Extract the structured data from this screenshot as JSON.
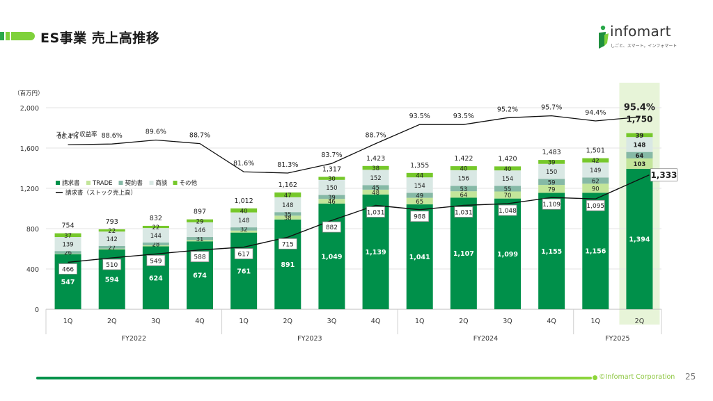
{
  "page": {
    "title": "ES事業 売上高推移",
    "logo_text": "infomart",
    "logo_sub": "しごと、スマート。インフォマート",
    "copyright": "©Infomart Corporation",
    "page_number": "25"
  },
  "colors": {
    "invoice": "#00904a",
    "trade": "#c3e59a",
    "contract": "#86b9a6",
    "negotiation": "#d9e8e4",
    "other": "#76c82b",
    "highlight": "#e7f4d8",
    "line": "#111111"
  },
  "chart_data": {
    "type": "bar",
    "stacked": true,
    "y_unit_label": "（百万円）",
    "ylim": [
      0,
      2000
    ],
    "yticks": [
      "0",
      "400",
      "800",
      "1,200",
      "1,600",
      "2,000"
    ],
    "ytick_values": [
      0,
      400,
      800,
      1200,
      1600,
      2000
    ],
    "grid": true,
    "legend_position": "upper-left",
    "categories": [
      "1Q",
      "2Q",
      "3Q",
      "4Q",
      "1Q",
      "2Q",
      "3Q",
      "4Q",
      "1Q",
      "2Q",
      "3Q",
      "4Q",
      "1Q",
      "2Q"
    ],
    "groups": [
      {
        "label": "FY2022",
        "count": 4
      },
      {
        "label": "FY2023",
        "count": 4
      },
      {
        "label": "FY2024",
        "count": 4
      },
      {
        "label": "FY2025",
        "count": 2
      }
    ],
    "series": [
      {
        "name": "請求書",
        "key": "invoice",
        "values": [
          547,
          594,
          624,
          674,
          761,
          891,
          1049,
          1139,
          1041,
          1107,
          1099,
          1155,
          1156,
          1394
        ]
      },
      {
        "name": "TRADE",
        "key": "trade",
        "values": [
          5,
          8,
          10,
          12,
          20,
          38,
          46,
          48,
          65,
          64,
          70,
          79,
          90,
          103
        ]
      },
      {
        "name": "契約書",
        "key": "contract",
        "values": [
          26,
          27,
          28,
          31,
          32,
          35,
          39,
          45,
          49,
          53,
          55,
          59,
          62,
          64
        ]
      },
      {
        "name": "商談",
        "key": "negotiation",
        "values": [
          139,
          142,
          144,
          146,
          148,
          148,
          150,
          152,
          154,
          156,
          154,
          150,
          149,
          148
        ]
      },
      {
        "name": "その他",
        "key": "other",
        "values": [
          37,
          22,
          22,
          29,
          40,
          47,
          30,
          38,
          44,
          40,
          40,
          39,
          42,
          39
        ]
      }
    ],
    "segment_labels": {
      "invoice": [
        "547",
        "594",
        "624",
        "674",
        "761",
        "891",
        "1,049",
        "1,139",
        "1,041",
        "1,107",
        "1,099",
        "1,155",
        "1,156",
        "1,394"
      ],
      "trade": [
        "",
        "",
        "",
        "",
        "",
        "38",
        "46",
        "48",
        "65",
        "64",
        "70",
        "79",
        "90",
        "103"
      ],
      "contract": [
        "26",
        "27",
        "28",
        "31",
        "32",
        "35",
        "39",
        "45",
        "49",
        "53",
        "55",
        "59",
        "62",
        "64"
      ],
      "negotiation": [
        "139",
        "142",
        "144",
        "146",
        "148",
        "148",
        "150",
        "152",
        "154",
        "156",
        "154",
        "150",
        "149",
        "148"
      ],
      "other": [
        "37",
        "22",
        "22",
        "29",
        "40",
        "47",
        "30",
        "38",
        "44",
        "40",
        "40",
        "39",
        "42",
        "39"
      ]
    },
    "totals": [
      "754",
      "793",
      "832",
      "897",
      "1,012",
      "1,162",
      "1,317",
      "1,423",
      "1,355",
      "1,422",
      "1,420",
      "1,483",
      "1,501",
      "1,750"
    ],
    "stock_sales_line": {
      "name": "請求書（ストック売上高）",
      "values": [
        466,
        510,
        549,
        588,
        617,
        715,
        882,
        1031,
        988,
        1031,
        1048,
        1109,
        1095,
        1333
      ],
      "labels": [
        "466",
        "510",
        "549",
        "588",
        "617",
        "715",
        "882",
        "1,031",
        "988",
        "1,031",
        "1,048",
        "1,109",
        "1,095",
        "1,333"
      ]
    },
    "stock_ratio": {
      "name": "ストック収益率",
      "values": [
        88.4,
        88.6,
        89.6,
        88.7,
        81.6,
        81.3,
        83.7,
        88.7,
        93.5,
        93.5,
        95.2,
        95.7,
        94.4,
        95.4
      ],
      "labels": [
        "88.4%",
        "88.6%",
        "89.6%",
        "88.7%",
        "81.6%",
        "81.3%",
        "83.7%",
        "88.7%",
        "93.5%",
        "93.5%",
        "95.2%",
        "95.7%",
        "94.4%",
        "95.4%"
      ]
    },
    "highlight_index": 13
  }
}
